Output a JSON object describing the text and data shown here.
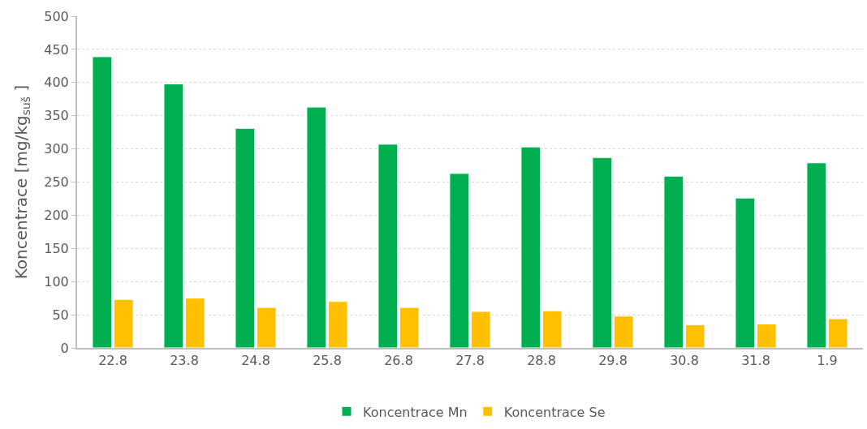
{
  "chart_data": {
    "type": "bar",
    "ylabel": "Koncentrace [mg/kg$_{suš}$ ]",
    "categories": [
      "22.8",
      "23.8",
      "24.8",
      "25.8",
      "26.8",
      "27.8",
      "28.8",
      "29.8",
      "30.8",
      "31.8",
      "1.9"
    ],
    "series": [
      {
        "name": "Koncentrace Mn",
        "color": "#00b050",
        "values": [
          439,
          398,
          331,
          363,
          307,
          263,
          303,
          287,
          259,
          226,
          279
        ]
      },
      {
        "name": "Koncentrace Se",
        "color": "#ffc000",
        "values": [
          73,
          75,
          61,
          70,
          61,
          55,
          56,
          48,
          35,
          36,
          44
        ]
      }
    ],
    "ylim": [
      0,
      500
    ],
    "yticks": [
      0,
      50,
      100,
      150,
      200,
      250,
      300,
      350,
      400,
      450,
      500
    ],
    "grid": "y",
    "legend": "bottom"
  }
}
